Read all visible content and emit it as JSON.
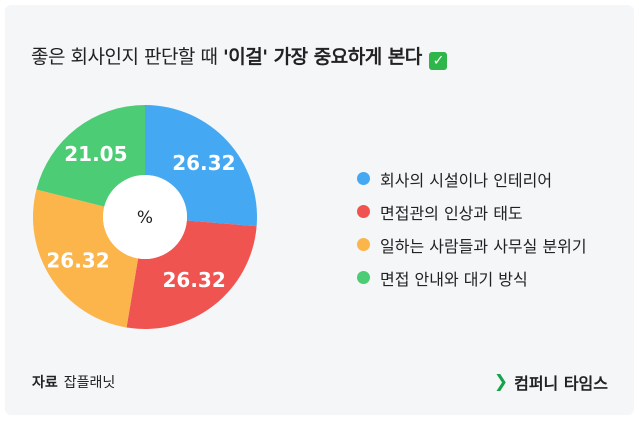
{
  "title": {
    "prefix": "좋은 회사인지 판단할 때 ",
    "emphasis": "'이걸' 가장 중요하게 본다",
    "check": "✓"
  },
  "chart_data": {
    "type": "pie",
    "title": "좋은 회사인지 판단할 때 '이걸' 가장 중요하게 본다",
    "center_label": "%",
    "categories": [
      "회사의 시설이나 인테리어",
      "면접관의 인상과 태도",
      "일하는 사람들과 사무실 분위기",
      "면접 안내와 대기 방식"
    ],
    "values": [
      26.32,
      26.32,
      26.32,
      21.05
    ],
    "value_labels": [
      "26.32",
      "26.32",
      "26.32",
      "21.05"
    ],
    "colors": [
      "#45a8f2",
      "#ef5451",
      "#fbb54a",
      "#4ccc74"
    ],
    "legend_position": "right"
  },
  "source": {
    "label": "자료",
    "value": "잡플래닛"
  },
  "brand": {
    "icon": "chevron-right-icon",
    "name": "컴퍼니 타임스"
  }
}
